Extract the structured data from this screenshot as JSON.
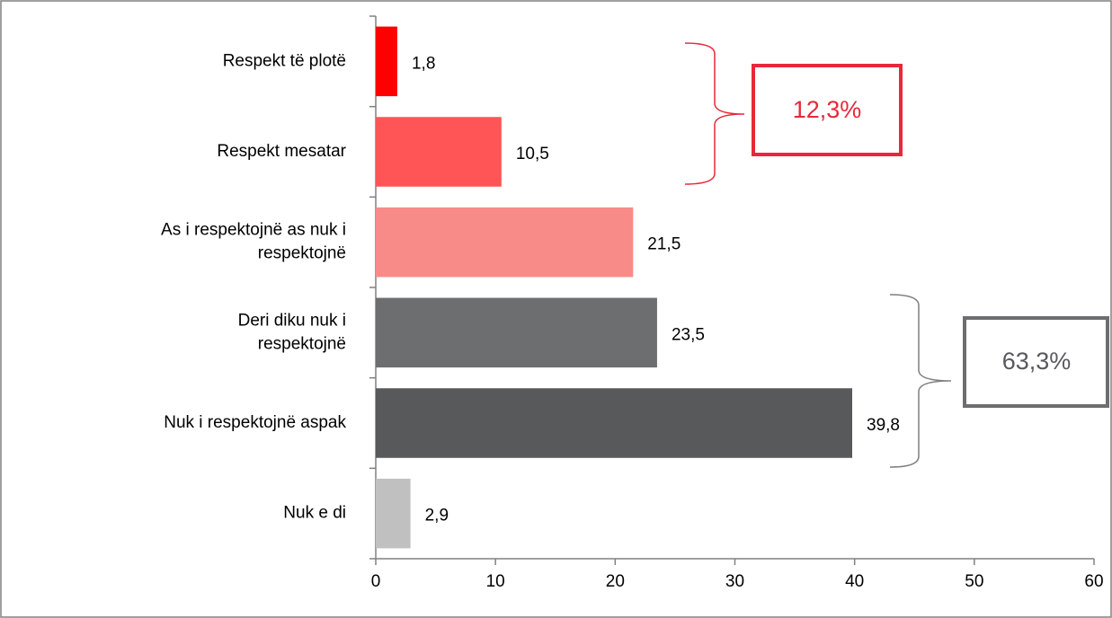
{
  "chart_data": {
    "type": "barh",
    "categories": [
      "Respekt të plotë",
      "Respekt mesatar",
      "As i respektojnë as nuk i\nrespektojnë",
      "Deri diku nuk i\nrespektojnë",
      "Nuk i respektojnë aspak",
      "Nuk e di"
    ],
    "values": [
      1.8,
      10.5,
      21.5,
      23.5,
      39.8,
      2.9
    ],
    "value_labels": [
      "1,8",
      "10,5",
      "21,5",
      "23,5",
      "39,8",
      "2,9"
    ],
    "colors": [
      "#ff0000",
      "#ff5557",
      "#f88a88",
      "#6d6e70",
      "#58595b",
      "#c0c0c0"
    ],
    "xlim": [
      0,
      60
    ],
    "xticks": [
      0,
      10,
      20,
      30,
      40,
      50,
      60
    ],
    "annotations": [
      "12,3%",
      "63,3%"
    ]
  }
}
